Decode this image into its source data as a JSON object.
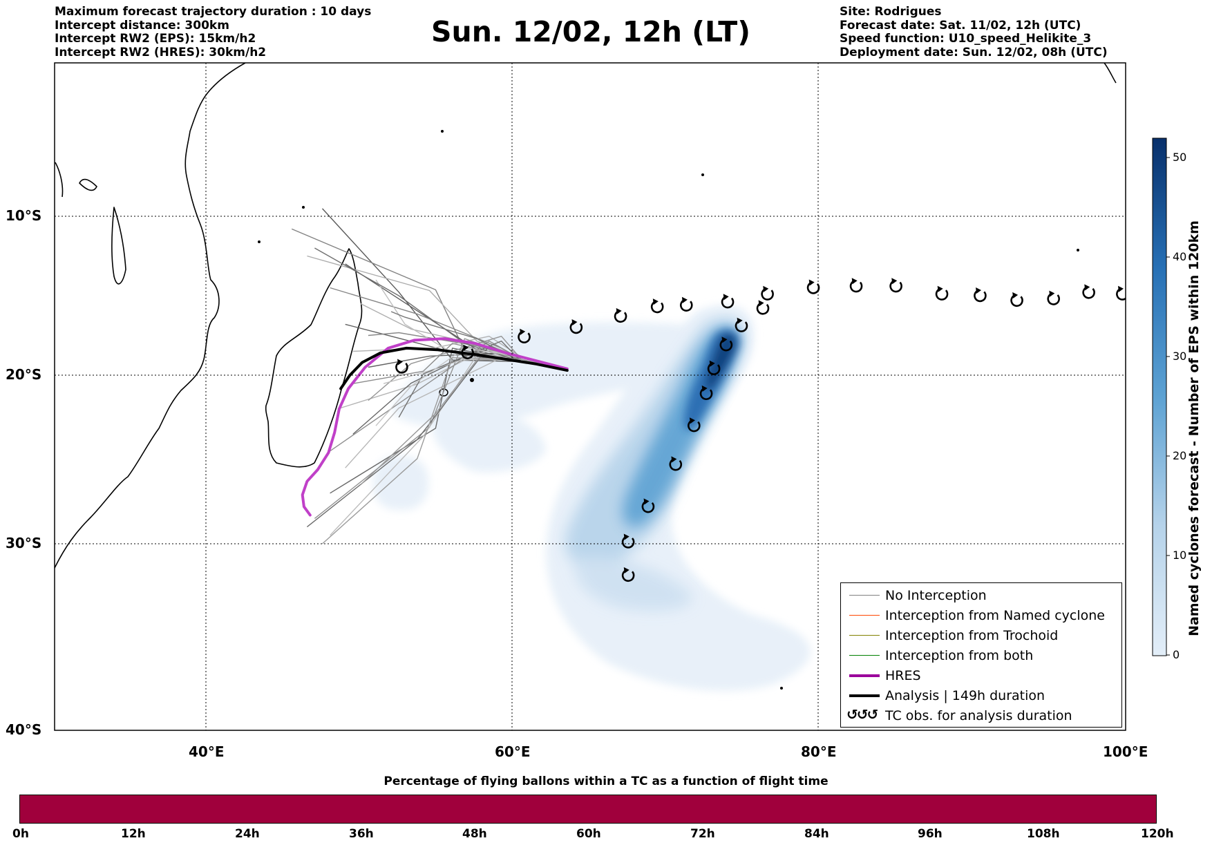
{
  "header_left": [
    "Maximum forecast trajectory duration : 10 days",
    "Intercept distance: 300km",
    "Intercept RW2 (EPS):  15km/h2",
    "Intercept RW2 (HRES): 30km/h2"
  ],
  "header_right": [
    "Site: Rodrigues",
    "Forecast date: Sat. 11/02, 12h (UTC)",
    "Speed function: U10_speed_Helikite_3",
    "Deployment date: Sun. 12/02, 08h (UTC)"
  ],
  "title": "Sun. 12/02, 12h (LT)",
  "map": {
    "lat_labels": [
      "10°S",
      "20°S",
      "30°S",
      "40°S"
    ],
    "lon_labels": [
      "40°E",
      "60°E",
      "80°E",
      "100°E"
    ],
    "gridlines": true,
    "extent": {
      "lon_min": 30,
      "lon_max": 100,
      "lat_min": -40,
      "lat_max": 0
    }
  },
  "colorbar": {
    "title": "Named cyclones forecast - Number of EPS within 120km",
    "ticks": [
      "50",
      "40",
      "30",
      "20",
      "10",
      "0"
    ],
    "min": 0,
    "max": 52,
    "colors": [
      "#e3eef8",
      "#08306b"
    ]
  },
  "legend": {
    "items": [
      {
        "label": "No Interception",
        "color": "#808080",
        "kind": "thin"
      },
      {
        "label": "Interception from Named cyclone",
        "color": "#ff4500",
        "kind": "thin"
      },
      {
        "label": "Interception from Trochoid",
        "color": "#808000",
        "kind": "thin"
      },
      {
        "label": "Interception from both",
        "color": "#008000",
        "kind": "thin"
      },
      {
        "label": "HRES",
        "color": "#9b009b",
        "kind": "thick"
      },
      {
        "label": "Analysis | 149h duration",
        "color": "#000000",
        "kind": "thick"
      },
      {
        "label": "TC obs. for analysis duration",
        "color": "#000000",
        "kind": "symbol",
        "symbol": "↺↺↺"
      }
    ]
  },
  "tc_observations": [
    {
      "lon": 99.8,
      "lat": -14.9
    },
    {
      "lon": 97.6,
      "lat": -14.8
    },
    {
      "lon": 95.3,
      "lat": -15.2
    },
    {
      "lon": 92.9,
      "lat": -15.3
    },
    {
      "lon": 90.5,
      "lat": -15.0
    },
    {
      "lon": 88.0,
      "lat": -14.9
    },
    {
      "lon": 85.0,
      "lat": -14.4
    },
    {
      "lon": 82.4,
      "lat": -14.4
    },
    {
      "lon": 79.6,
      "lat": -14.5
    },
    {
      "lon": 76.6,
      "lat": -14.9
    },
    {
      "lon": 76.3,
      "lat": -15.8
    },
    {
      "lon": 74.9,
      "lat": -16.9
    },
    {
      "lon": 74.0,
      "lat": -15.4
    },
    {
      "lon": 71.3,
      "lat": -15.6
    },
    {
      "lon": 69.4,
      "lat": -15.7
    },
    {
      "lon": 67.0,
      "lat": -16.3
    },
    {
      "lon": 64.1,
      "lat": -17.0
    },
    {
      "lon": 60.7,
      "lat": -17.6
    },
    {
      "lon": 57.0,
      "lat": -18.6
    },
    {
      "lon": 52.7,
      "lat": -19.5
    },
    {
      "lon": 73.9,
      "lat": -18.1
    },
    {
      "lon": 73.1,
      "lat": -19.6
    },
    {
      "lon": 72.6,
      "lat": -21.1
    },
    {
      "lon": 71.8,
      "lat": -23.0
    },
    {
      "lon": 70.6,
      "lat": -25.3
    },
    {
      "lon": 68.8,
      "lat": -27.8
    },
    {
      "lon": 67.5,
      "lat": -29.9
    },
    {
      "lon": 67.5,
      "lat": -31.7
    }
  ],
  "hres_track": [
    [
      63.5,
      -19.6
    ],
    [
      61.5,
      -19.1
    ],
    [
      59.5,
      -18.6
    ],
    [
      57.5,
      -18.0
    ],
    [
      55.5,
      -17.7
    ],
    [
      53.5,
      -17.8
    ],
    [
      51.8,
      -18.3
    ],
    [
      50.3,
      -19.5
    ],
    [
      49.2,
      -20.8
    ],
    [
      48.6,
      -22.0
    ],
    [
      48.3,
      -23.4
    ],
    [
      47.9,
      -24.6
    ],
    [
      47.2,
      -25.6
    ],
    [
      46.5,
      -26.3
    ],
    [
      46.2,
      -27.1
    ],
    [
      46.3,
      -27.8
    ],
    [
      46.7,
      -28.3
    ]
  ],
  "analysis_track": [
    [
      63.5,
      -19.7
    ],
    [
      61.5,
      -19.3
    ],
    [
      59.5,
      -19.0
    ],
    [
      57.5,
      -18.7
    ],
    [
      55.0,
      -18.4
    ],
    [
      53.0,
      -18.3
    ],
    [
      51.3,
      -18.6
    ],
    [
      50.1,
      -19.2
    ],
    [
      49.3,
      -20.0
    ],
    [
      48.7,
      -20.8
    ]
  ],
  "bottom_bar": {
    "title": "Percentage of flying ballons within a TC as a function of flight time",
    "color": "#a0003c",
    "ticks": [
      "0h",
      "12h",
      "24h",
      "36h",
      "48h",
      "60h",
      "72h",
      "84h",
      "96h",
      "108h",
      "120h"
    ]
  }
}
